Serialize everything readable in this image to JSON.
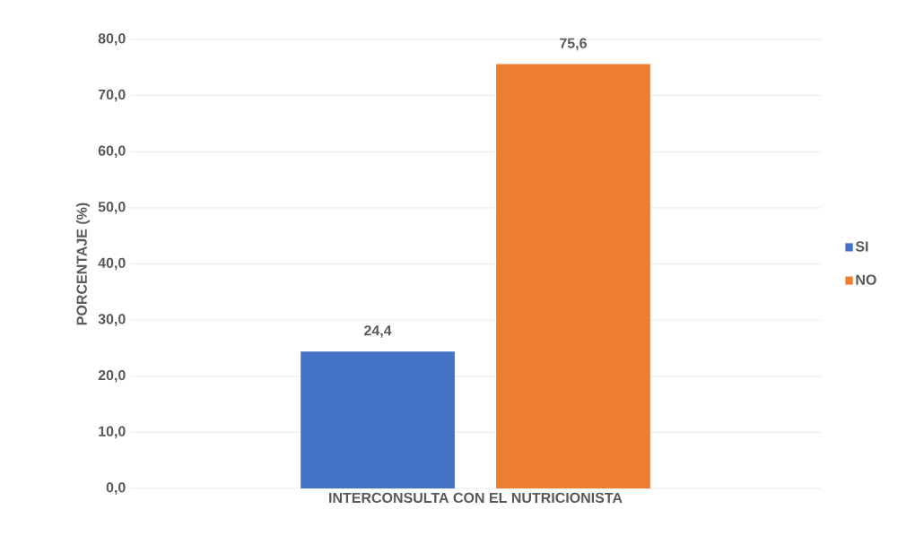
{
  "chart_data": {
    "type": "bar",
    "ylabel": "PORCENTAJE (%)",
    "categories": [
      "INTERCONSULTA CON EL NUTRICIONISTA"
    ],
    "series": [
      {
        "name": "SI",
        "color": "#4472c4",
        "values": [
          24.4
        ],
        "value_labels": [
          "24,4"
        ]
      },
      {
        "name": "NO",
        "color": "#ed7d31",
        "values": [
          75.6
        ],
        "value_labels": [
          "75,6"
        ]
      }
    ],
    "ylim": [
      0,
      80
    ],
    "yticks": [
      {
        "value": 0,
        "label": "0,0"
      },
      {
        "value": 10,
        "label": "10,0"
      },
      {
        "value": 20,
        "label": "20,0"
      },
      {
        "value": 30,
        "label": "30,0"
      },
      {
        "value": 40,
        "label": "40,0"
      },
      {
        "value": 50,
        "label": "50,0"
      },
      {
        "value": 60,
        "label": "60,0"
      },
      {
        "value": 70,
        "label": "70,0"
      },
      {
        "value": 80,
        "label": "80,0"
      }
    ],
    "grid": "y",
    "legend": "right"
  }
}
